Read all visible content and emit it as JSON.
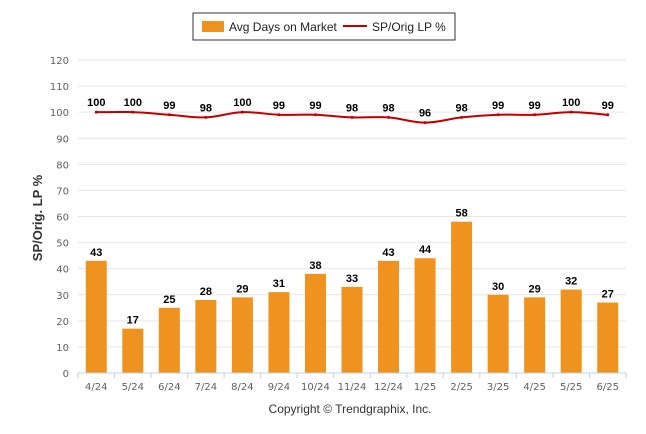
{
  "chart_data": {
    "type": "bar",
    "categories": [
      "4/24",
      "5/24",
      "6/24",
      "7/24",
      "8/24",
      "9/24",
      "10/24",
      "11/24",
      "12/24",
      "1/25",
      "2/25",
      "3/25",
      "4/25",
      "5/25",
      "6/25"
    ],
    "series": [
      {
        "name": "Avg Days on Market",
        "type": "bar",
        "color": "#f0921e",
        "values": [
          43,
          17,
          25,
          28,
          29,
          31,
          38,
          33,
          43,
          44,
          58,
          30,
          29,
          32,
          27
        ]
      },
      {
        "name": "SP/Orig LP %",
        "type": "line",
        "color": "#c00000",
        "values": [
          100,
          100,
          99,
          98,
          100,
          99,
          99,
          98,
          98,
          96,
          98,
          99,
          99,
          100,
          99
        ]
      }
    ],
    "ylabel": "SP/Orig. LP %",
    "ylim": [
      0,
      120
    ],
    "yticks": [
      0,
      10,
      20,
      30,
      40,
      50,
      60,
      70,
      80,
      90,
      100,
      110,
      120
    ],
    "grid": true,
    "legend_position": "top-center",
    "credit": "Copyright © Trendgraphix, Inc."
  }
}
